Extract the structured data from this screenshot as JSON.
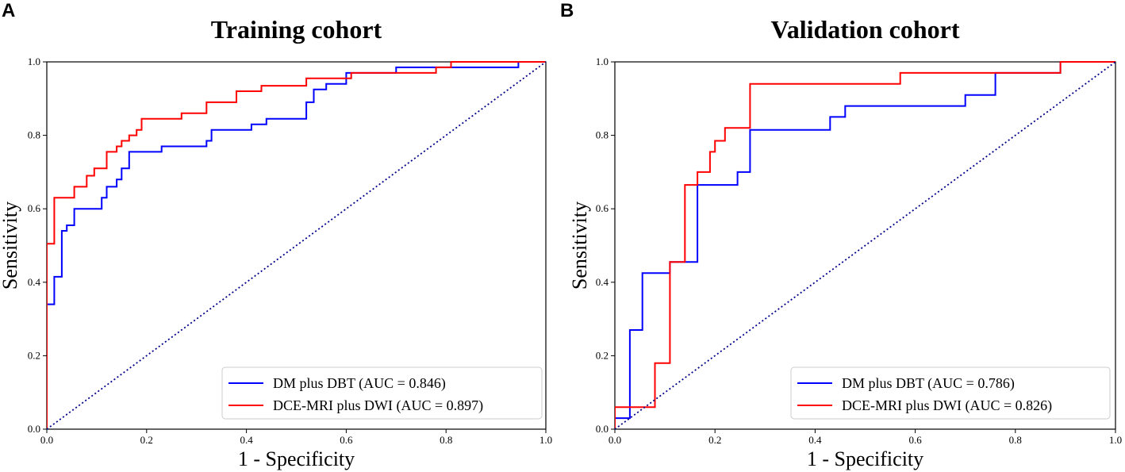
{
  "panels": [
    {
      "letter": "A"
    },
    {
      "letter": "B"
    }
  ],
  "chart_data": [
    {
      "type": "line",
      "title": "Training cohort",
      "xlabel": "1 - Specificity",
      "ylabel": "Sensitivity",
      "xlim": [
        0,
        1
      ],
      "ylim": [
        0,
        1
      ],
      "xticks": [
        "0.0",
        "0.2",
        "0.4",
        "0.6",
        "0.8",
        "1.0"
      ],
      "yticks": [
        "0.0",
        "0.2",
        "0.4",
        "0.6",
        "0.8",
        "1.0"
      ],
      "legend_position": "bottom-right",
      "series": [
        {
          "name": "DM plus DBT (AUC = 0.846)",
          "color": "#0000ff",
          "x": [
            0,
            0,
            0.015,
            0.015,
            0.03,
            0.03,
            0.04,
            0.04,
            0.055,
            0.055,
            0.11,
            0.11,
            0.12,
            0.12,
            0.14,
            0.14,
            0.15,
            0.15,
            0.165,
            0.165,
            0.23,
            0.23,
            0.32,
            0.32,
            0.33,
            0.33,
            0.41,
            0.41,
            0.44,
            0.44,
            0.52,
            0.52,
            0.535,
            0.535,
            0.56,
            0.56,
            0.6,
            0.6,
            0.7,
            0.7,
            0.945,
            0.945,
            1
          ],
          "y": [
            0,
            0.34,
            0.34,
            0.415,
            0.415,
            0.54,
            0.54,
            0.555,
            0.555,
            0.6,
            0.6,
            0.63,
            0.63,
            0.66,
            0.66,
            0.68,
            0.68,
            0.71,
            0.71,
            0.755,
            0.755,
            0.77,
            0.77,
            0.785,
            0.785,
            0.815,
            0.815,
            0.83,
            0.83,
            0.845,
            0.845,
            0.89,
            0.89,
            0.925,
            0.925,
            0.94,
            0.94,
            0.97,
            0.97,
            0.985,
            0.985,
            1,
            1
          ]
        },
        {
          "name": "DCE-MRI plus DWI (AUC = 0.897)",
          "color": "#ff0000",
          "x": [
            0,
            0,
            0.015,
            0.015,
            0.055,
            0.055,
            0.08,
            0.08,
            0.095,
            0.095,
            0.12,
            0.12,
            0.14,
            0.14,
            0.15,
            0.15,
            0.165,
            0.165,
            0.18,
            0.18,
            0.19,
            0.19,
            0.27,
            0.27,
            0.32,
            0.32,
            0.38,
            0.38,
            0.43,
            0.43,
            0.52,
            0.52,
            0.6,
            0.6,
            0.61,
            0.61,
            0.78,
            0.78,
            0.81,
            0.81,
            1
          ],
          "y": [
            0,
            0.505,
            0.505,
            0.63,
            0.63,
            0.66,
            0.66,
            0.69,
            0.69,
            0.71,
            0.71,
            0.755,
            0.755,
            0.77,
            0.77,
            0.785,
            0.785,
            0.8,
            0.8,
            0.815,
            0.815,
            0.845,
            0.845,
            0.86,
            0.86,
            0.89,
            0.89,
            0.92,
            0.92,
            0.935,
            0.935,
            0.955,
            0.955,
            0.955,
            0.955,
            0.97,
            0.97,
            0.985,
            0.985,
            1,
            1
          ]
        },
        {
          "name": "",
          "color": "#00008b",
          "style": "dotted",
          "x": [
            0,
            1
          ],
          "y": [
            0,
            1
          ]
        }
      ]
    },
    {
      "type": "line",
      "title": "Validation cohort",
      "xlabel": "1 - Specificity",
      "ylabel": "Sensitivity",
      "xlim": [
        0,
        1
      ],
      "ylim": [
        0,
        1
      ],
      "xticks": [
        "0.0",
        "0.2",
        "0.4",
        "0.6",
        "0.8",
        "1.0"
      ],
      "yticks": [
        "0.0",
        "0.2",
        "0.4",
        "0.6",
        "0.8",
        "1.0"
      ],
      "legend_position": "bottom-right",
      "series": [
        {
          "name": "DM plus DBT (AUC = 0.786)",
          "color": "#0000ff",
          "x": [
            0,
            0,
            0.03,
            0.03,
            0.055,
            0.055,
            0.11,
            0.11,
            0.165,
            0.165,
            0.245,
            0.245,
            0.27,
            0.27,
            0.43,
            0.43,
            0.46,
            0.46,
            0.7,
            0.7,
            0.76,
            0.76,
            0.89,
            0.89,
            1
          ],
          "y": [
            0,
            0.03,
            0.03,
            0.27,
            0.27,
            0.425,
            0.425,
            0.455,
            0.455,
            0.665,
            0.665,
            0.7,
            0.7,
            0.815,
            0.815,
            0.85,
            0.85,
            0.88,
            0.88,
            0.91,
            0.91,
            0.97,
            0.97,
            1,
            1
          ]
        },
        {
          "name": "DCE-MRI plus DWI (AUC = 0.826)",
          "color": "#ff0000",
          "x": [
            0,
            0,
            0.08,
            0.08,
            0.11,
            0.11,
            0.14,
            0.14,
            0.165,
            0.165,
            0.19,
            0.19,
            0.2,
            0.2,
            0.22,
            0.22,
            0.27,
            0.27,
            0.57,
            0.57,
            0.89,
            0.89,
            1
          ],
          "y": [
            0,
            0.06,
            0.06,
            0.18,
            0.18,
            0.455,
            0.455,
            0.665,
            0.665,
            0.7,
            0.7,
            0.755,
            0.755,
            0.785,
            0.785,
            0.82,
            0.82,
            0.94,
            0.94,
            0.97,
            0.97,
            1,
            1
          ]
        },
        {
          "name": "",
          "color": "#00008b",
          "style": "dotted",
          "x": [
            0,
            1
          ],
          "y": [
            0,
            1
          ]
        }
      ]
    }
  ]
}
